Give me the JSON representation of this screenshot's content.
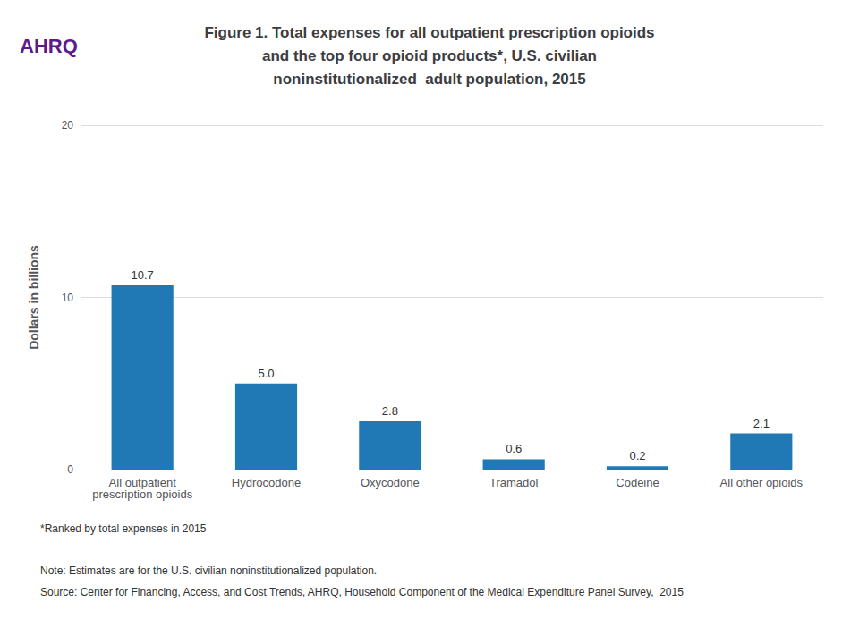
{
  "chart_data": {
    "type": "bar",
    "title": "Figure 1. Total expenses for all outpatient prescription opioids\nand the top four opioid products*, U.S. civilian\nnoninstitutionalized  adult population, 2015",
    "categories": [
      "All outpatient\nprescription opioids",
      "Hydrocodone",
      "Oxycodone",
      "Tramadol",
      "Codeine",
      "All other opioids"
    ],
    "values": [
      10.7,
      5.0,
      2.8,
      0.6,
      0.2,
      2.1
    ],
    "value_labels": [
      "10.7",
      "5.0",
      "2.8",
      "0.6",
      "0.2",
      "2.1"
    ],
    "data_labels": true,
    "color": "#2079b4",
    "ylabel": "Dollars in billions",
    "ylim": [
      0,
      20
    ],
    "yticks": [
      0,
      10,
      20
    ],
    "grid": true,
    "footnotes": [
      "*Ranked by total expenses in 2015",
      "Note: Estimates are for the U.S. civilian noninstitutionalized population.",
      "Source: Center for Financing, Access, and Cost Trends, AHRQ, Household Component of the Medical Expenditure Panel Survey,  2015"
    ],
    "annotations": [
      "AHRQ"
    ]
  }
}
